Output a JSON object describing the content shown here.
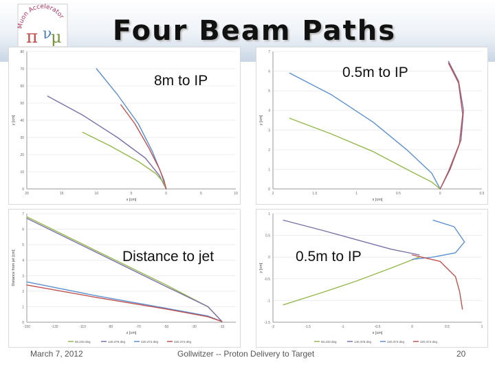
{
  "slide": {
    "title": "Four Beam Paths",
    "footer_date": "March 7, 2012",
    "footer_center": "Gollwitzer -- Proton Delivery to Target",
    "footer_page": "20",
    "logo_text": "Muon Accelerator"
  },
  "overlays": [
    "8m to IP",
    "0.5m to IP",
    "Distance to jet",
    "0.5m to IP"
  ],
  "colors": {
    "blue": "#5b8fd1",
    "purple": "#7c6fa8",
    "green": "#94b84a",
    "red": "#c0504d"
  },
  "chart_data": [
    {
      "type": "line",
      "xlabel": "x [cm]",
      "ylabel": "y [cm]",
      "xlim": [
        -20,
        10
      ],
      "ylim": [
        0,
        80
      ],
      "x_ticks": [
        -20,
        -15,
        -10,
        -5,
        0,
        5,
        10
      ],
      "x_tick_labels": [
        "20",
        "15",
        "10",
        "5",
        "0",
        "5",
        "10"
      ],
      "y_ticks": [
        0,
        10,
        20,
        30,
        40,
        50,
        60,
        70,
        80
      ],
      "series": [
        {
          "color": "blue",
          "x": [
            -10,
            -7,
            -4,
            -2,
            -0.8,
            0
          ],
          "y": [
            70,
            55,
            38,
            22,
            10,
            0
          ]
        },
        {
          "color": "purple",
          "x": [
            -17,
            -12,
            -7,
            -3,
            -1,
            0
          ],
          "y": [
            54,
            43,
            30,
            18,
            8,
            0
          ]
        },
        {
          "color": "green",
          "x": [
            -12,
            -8,
            -4,
            -1.5,
            -0.4,
            0
          ],
          "y": [
            33,
            25,
            16,
            9,
            4,
            0
          ]
        },
        {
          "color": "red",
          "x": [
            -6.5,
            -4.5,
            -2.5,
            -1,
            -0.3,
            0
          ],
          "y": [
            49,
            38,
            24,
            12,
            5,
            0
          ]
        }
      ]
    },
    {
      "type": "line",
      "xlabel": "x [cm]",
      "ylabel": "y [cm]",
      "xlim": [
        -2,
        0.5
      ],
      "ylim": [
        0,
        7
      ],
      "x_ticks": [
        -2,
        -1.5,
        -1,
        -0.5,
        0,
        0.5
      ],
      "x_tick_labels": [
        "2",
        "1.5",
        "1",
        "0.5",
        "0",
        "0.5"
      ],
      "y_ticks": [
        0,
        1,
        2,
        3,
        4,
        5,
        6,
        7
      ],
      "series": [
        {
          "color": "blue",
          "x": [
            -1.8,
            -1.3,
            -0.8,
            -0.4,
            -0.1,
            0
          ],
          "y": [
            5.9,
            4.8,
            3.4,
            2.0,
            0.8,
            0
          ]
        },
        {
          "color": "green",
          "x": [
            -1.8,
            -1.3,
            -0.8,
            -0.4,
            -0.1,
            0
          ],
          "y": [
            3.6,
            2.8,
            1.9,
            1.0,
            0.35,
            0
          ]
        },
        {
          "color": "purple",
          "x": [
            0.1,
            0.22,
            0.28,
            0.25,
            0.12,
            0
          ],
          "y": [
            6.5,
            5.5,
            4.0,
            2.5,
            1.0,
            0
          ]
        },
        {
          "color": "red",
          "x": [
            0.1,
            0.22,
            0.27,
            0.23,
            0.1,
            0
          ],
          "y": [
            6.4,
            5.4,
            3.8,
            2.3,
            0.9,
            0
          ]
        }
      ]
    },
    {
      "type": "line",
      "xlabel": "z [cm]",
      "ylabel": "Distance from jet [cm]",
      "xlim": [
        -150,
        0
      ],
      "ylim": [
        0,
        7
      ],
      "x_ticks": [
        -150,
        -130,
        -110,
        -90,
        -70,
        -50,
        -30,
        -10
      ],
      "y_ticks": [
        0,
        1,
        2,
        3,
        4,
        5,
        6,
        7
      ],
      "legend": [
        "50.233 deg",
        "140.376 deg",
        "220.374 deg",
        "320.374 deg"
      ],
      "series": [
        {
          "color": "green",
          "x": [
            -150,
            -100,
            -50,
            -20,
            -10
          ],
          "y": [
            6.8,
            4.6,
            2.4,
            1.0,
            0.05
          ]
        },
        {
          "color": "purple",
          "x": [
            -150,
            -100,
            -50,
            -20,
            -10
          ],
          "y": [
            6.7,
            4.5,
            2.3,
            1.0,
            0.05
          ]
        },
        {
          "color": "blue",
          "x": [
            -150,
            -100,
            -50,
            -20,
            -10
          ],
          "y": [
            2.6,
            1.7,
            0.9,
            0.4,
            0.05
          ]
        },
        {
          "color": "red",
          "x": [
            -150,
            -100,
            -50,
            -20,
            -10
          ],
          "y": [
            2.4,
            1.6,
            0.85,
            0.35,
            0.05
          ]
        }
      ]
    },
    {
      "type": "line",
      "xlabel": "x [cm]",
      "ylabel": "y [cm]",
      "xlim": [
        -2,
        1
      ],
      "ylim": [
        -1.5,
        1
      ],
      "x_ticks": [
        -2,
        -1.5,
        -1,
        -0.5,
        0,
        0.5,
        1
      ],
      "y_ticks": [
        -1.5,
        -1,
        -0.5,
        0,
        0.5,
        1
      ],
      "legend": [
        "50.233 deg",
        "140.376 deg",
        "220.374 deg",
        "320.374 deg"
      ],
      "series": [
        {
          "color": "purple",
          "x": [
            -1.85,
            -1.3,
            -0.8,
            -0.3,
            0.1
          ],
          "y": [
            0.85,
            0.62,
            0.4,
            0.18,
            0.05
          ]
        },
        {
          "color": "green",
          "x": [
            -1.85,
            -1.3,
            -0.8,
            -0.3,
            0.1
          ],
          "y": [
            -1.1,
            -0.82,
            -0.55,
            -0.25,
            0.0
          ]
        },
        {
          "color": "blue",
          "x": [
            0.3,
            0.6,
            0.75,
            0.62,
            0.3,
            0.0
          ],
          "y": [
            0.85,
            0.7,
            0.35,
            0.1,
            0.0,
            -0.05
          ]
        },
        {
          "color": "red",
          "x": [
            0.0,
            0.4,
            0.62,
            0.68,
            0.72
          ],
          "y": [
            0.05,
            -0.1,
            -0.45,
            -0.8,
            -1.2
          ]
        }
      ]
    }
  ]
}
